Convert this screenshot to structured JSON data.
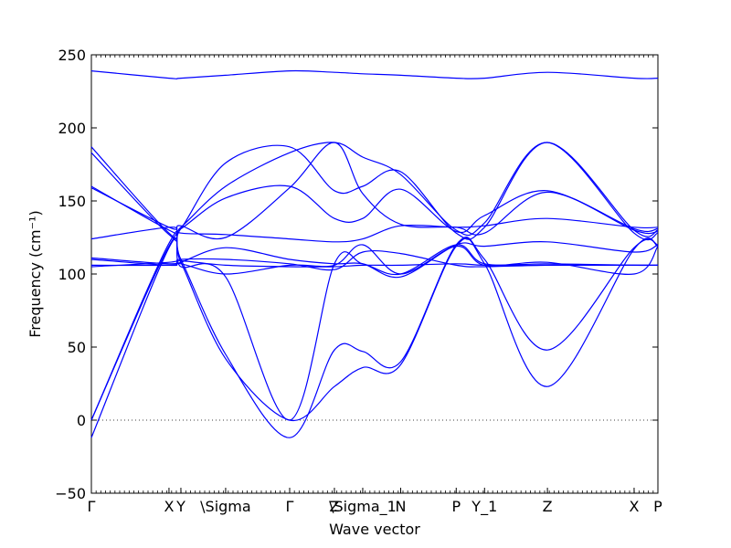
{
  "chart_data": {
    "type": "line",
    "title": "",
    "xlabel": "Wave vector",
    "ylabel": "Frequency (cm⁻¹)",
    "ylim": [
      -50,
      250
    ],
    "xlim": [
      0,
      1
    ],
    "y_ticks": [
      -50,
      0,
      50,
      100,
      150,
      200,
      250
    ],
    "x_ticks": [
      {
        "label": "Γ",
        "x": 0.0
      },
      {
        "label": "X",
        "x": 0.137
      },
      {
        "label": "Y",
        "x": 0.158
      },
      {
        "label": "\\Sigma",
        "x": 0.237
      },
      {
        "label": "Γ",
        "x": 0.35
      },
      {
        "label": "Z",
        "x": 0.429
      },
      {
        "label": "\\Sigma_1",
        "x": 0.479
      },
      {
        "label": "N",
        "x": 0.546
      },
      {
        "label": "P",
        "x": 0.644
      },
      {
        "label": "Y_1",
        "x": 0.694
      },
      {
        "label": "Z",
        "x": 0.805
      },
      {
        "label": "X",
        "x": 0.958
      },
      {
        "label": "P",
        "x": 1.0
      }
    ],
    "zero_line": true,
    "series": [
      {
        "x": [
          0,
          0.137,
          0.158,
          0.237,
          0.35,
          0.429,
          0.479,
          0.546,
          0.644,
          0.694,
          0.805,
          0.958,
          1.0
        ],
        "values": [
          239,
          234,
          234,
          236,
          239,
          238,
          237,
          236,
          234,
          234,
          238,
          234,
          234
        ]
      },
      {
        "x": [
          0,
          0.137,
          0.158,
          0.237,
          0.35,
          0.429,
          0.479,
          0.546,
          0.644,
          0.694,
          0.805,
          0.958,
          1.0
        ],
        "values": [
          187,
          128,
          132,
          160,
          183,
          190,
          180,
          168,
          130,
          135,
          190,
          128,
          128
        ]
      },
      {
        "x": [
          0,
          0.137,
          0.158,
          0.237,
          0.35,
          0.429,
          0.479,
          0.546,
          0.644,
          0.694,
          0.805,
          0.958,
          1.0
        ],
        "values": [
          183,
          127,
          131,
          176,
          187,
          157,
          160,
          170,
          128,
          132,
          190,
          130,
          130
        ]
      },
      {
        "x": [
          0,
          0.137,
          0.158,
          0.237,
          0.35,
          0.429,
          0.479,
          0.546,
          0.644,
          0.694,
          0.805,
          0.958,
          1.0
        ],
        "values": [
          160,
          130,
          131,
          152,
          160,
          138,
          138,
          158,
          129,
          140,
          157,
          131,
          131
        ]
      },
      {
        "x": [
          0,
          0.137,
          0.158,
          0.237,
          0.35,
          0.429,
          0.479,
          0.546,
          0.644,
          0.694,
          0.805,
          0.958,
          1.0
        ],
        "values": [
          159,
          132,
          133,
          125,
          159,
          190,
          155,
          134,
          132,
          128,
          156,
          130,
          129
        ]
      },
      {
        "x": [
          0,
          0.137,
          0.158,
          0.237,
          0.35,
          0.429,
          0.479,
          0.546,
          0.644,
          0.694,
          0.805,
          0.958,
          1.0
        ],
        "values": [
          124,
          132,
          128,
          127,
          124,
          122,
          124,
          133,
          132,
          133,
          138,
          132,
          132
        ]
      },
      {
        "x": [
          0,
          0.137,
          0.158,
          0.237,
          0.35,
          0.429,
          0.479,
          0.546,
          0.644,
          0.694,
          0.805,
          0.958,
          1.0
        ],
        "values": [
          111,
          107,
          109,
          106,
          105,
          105,
          106,
          106,
          107,
          106,
          106,
          106,
          106
        ]
      },
      {
        "x": [
          0,
          0.137,
          0.158,
          0.237,
          0.35,
          0.429,
          0.479,
          0.546,
          0.644,
          0.694,
          0.805,
          0.958,
          1.0
        ],
        "values": [
          110,
          106,
          108,
          118,
          110,
          107,
          107,
          98,
          120,
          119,
          122,
          115,
          120
        ]
      },
      {
        "x": [
          0,
          0.137,
          0.158,
          0.237,
          0.35,
          0.429,
          0.479,
          0.546,
          0.644,
          0.694,
          0.805,
          0.958,
          1.0
        ],
        "values": [
          106,
          106,
          107,
          100,
          106,
          106,
          120,
          100,
          119,
          106,
          108,
          100,
          119
        ]
      },
      {
        "x": [
          0,
          0.137,
          0.158,
          0.237,
          0.35,
          0.429,
          0.479,
          0.546,
          0.644,
          0.694,
          0.805,
          0.958,
          1.0
        ],
        "values": [
          105,
          108,
          110,
          110,
          107,
          103,
          115,
          114,
          106,
          105,
          106,
          106,
          106
        ]
      },
      {
        "x": [
          0,
          0.137,
          0.158,
          0.237,
          0.35,
          0.429,
          0.479,
          0.546,
          0.644,
          0.694,
          0.805,
          0.958,
          1.0
        ],
        "values": [
          0,
          121,
          110,
          45,
          -12,
          48,
          47,
          40,
          120,
          110,
          48,
          118,
          120
        ]
      },
      {
        "x": [
          0,
          0.137,
          0.158,
          0.237,
          0.35,
          0.429,
          0.479,
          0.546,
          0.644,
          0.694,
          0.805,
          0.958,
          1.0
        ],
        "values": [
          0,
          119,
          108,
          42,
          0,
          23,
          36,
          38,
          119,
          107,
          23,
          117,
          119
        ]
      },
      {
        "x": [
          0,
          0.137,
          0.158,
          0.237,
          0.35,
          0.429,
          0.479,
          0.546,
          0.644,
          0.694,
          0.805,
          0.958,
          1.0
        ],
        "values": [
          -12,
          118,
          105,
          98,
          0,
          107,
          107,
          100,
          120,
          107,
          107,
          106,
          106
        ]
      }
    ]
  }
}
